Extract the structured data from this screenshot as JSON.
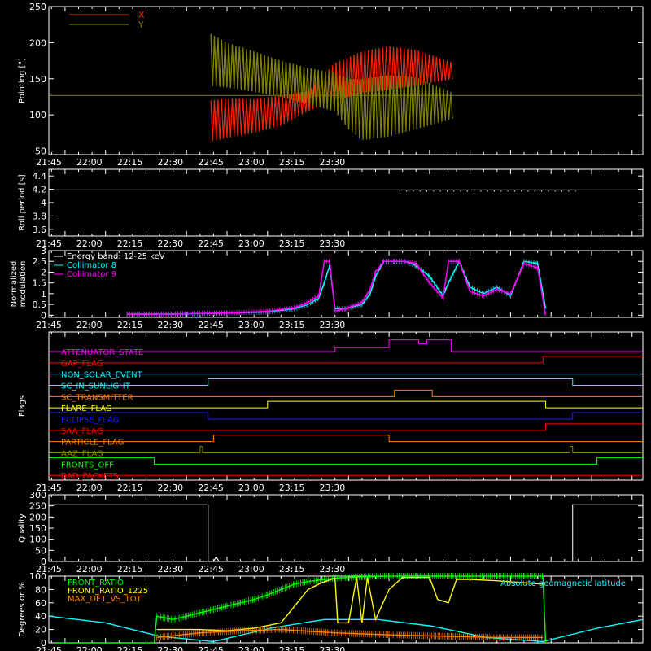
{
  "chart_data": [
    {
      "id": "pointing",
      "type": "line",
      "ylabel": "Pointing [\"]",
      "ylim": [
        45,
        250
      ],
      "yticks": [
        50,
        100,
        150,
        200,
        250
      ],
      "xlim": [
        1914,
        2134
      ],
      "xticks": [
        "21:45",
        "22:00",
        "22:15",
        "22:30",
        "22:45",
        "23:00",
        "23:15",
        "23:30"
      ],
      "legend": [
        {
          "name": "X",
          "color": "#ff2200"
        },
        {
          "name": "Y",
          "color": "#808000"
        }
      ],
      "baseline": 127,
      "series": [
        {
          "name": "X",
          "color": "#ff2200",
          "x": [
            1974,
            1980,
            1990,
            2000,
            2010,
            2020,
            2030,
            2040,
            2050,
            2064
          ],
          "ymin": [
            63,
            68,
            75,
            85,
            105,
            120,
            130,
            135,
            140,
            150
          ],
          "ymax": [
            120,
            123,
            122,
            127,
            133,
            172,
            188,
            195,
            190,
            172
          ]
        },
        {
          "name": "Y",
          "color": "#808000",
          "x": [
            1974,
            1980,
            1990,
            2000,
            2010,
            2020,
            2025,
            2030,
            2040,
            2050,
            2064
          ],
          "ymin": [
            140,
            138,
            132,
            125,
            115,
            105,
            80,
            65,
            70,
            80,
            95
          ],
          "ymax": [
            212,
            200,
            188,
            175,
            165,
            158,
            150,
            150,
            155,
            152,
            130
          ]
        }
      ]
    },
    {
      "id": "roll",
      "type": "line",
      "ylabel": "Roll period [s]",
      "ylim": [
        3.5,
        4.5
      ],
      "yticks": [
        3.6,
        3.8,
        4.0,
        4.2,
        4.4
      ],
      "xlim": [
        1914,
        2134
      ],
      "xticks": [
        "21:45",
        "22:00",
        "22:15",
        "22:30",
        "22:45",
        "23:00",
        "23:15",
        "23:30"
      ],
      "series": [
        {
          "name": "roll",
          "color": "#ffffff",
          "value": 4.19
        }
      ]
    },
    {
      "id": "modulation",
      "type": "line",
      "ylabel": "Normalized modulation",
      "ylim": [
        -0.1,
        3.0
      ],
      "yticks": [
        0.0,
        0.5,
        1.0,
        1.5,
        2.0,
        2.5,
        3.0
      ],
      "xlim": [
        1914,
        2134
      ],
      "xticks": [
        "21:45",
        "22:00",
        "22:15",
        "22:30",
        "22:45",
        "23:00",
        "23:15",
        "23:30"
      ],
      "legend": [
        {
          "name": "Energy band: 12-25 keV",
          "color": "#ffffff"
        },
        {
          "name": "Collimator 8",
          "color": "#00ffff"
        },
        {
          "name": "Collimator 9",
          "color": "#ff00ff"
        }
      ],
      "series": [
        {
          "name": "Collimator 8",
          "color": "#00ffff",
          "x": [
            1943,
            1960,
            1980,
            1995,
            2005,
            2010,
            2014,
            2016,
            2018,
            2020,
            2024,
            2030,
            2033,
            2035,
            2038,
            2042,
            2046,
            2050,
            2055,
            2060,
            2062,
            2066,
            2070,
            2075,
            2080,
            2085,
            2090,
            2095,
            2098
          ],
          "y": [
            0.05,
            0.05,
            0.1,
            0.15,
            0.3,
            0.5,
            0.8,
            1.5,
            2.3,
            0.3,
            0.3,
            0.5,
            1.0,
            1.8,
            2.5,
            2.5,
            2.5,
            2.3,
            1.8,
            0.9,
            1.5,
            2.5,
            1.3,
            1.0,
            1.3,
            0.9,
            2.5,
            2.4,
            0.3
          ]
        },
        {
          "name": "Collimator 9",
          "color": "#ff00ff",
          "x": [
            1943,
            1960,
            1980,
            1995,
            2005,
            2010,
            2014,
            2016,
            2018,
            2020,
            2024,
            2030,
            2033,
            2035,
            2038,
            2042,
            2046,
            2050,
            2055,
            2060,
            2062,
            2066,
            2070,
            2075,
            2080,
            2085,
            2090,
            2095,
            2098
          ],
          "y": [
            0.05,
            0.06,
            0.1,
            0.18,
            0.35,
            0.6,
            0.9,
            2.5,
            2.5,
            0.2,
            0.3,
            0.6,
            1.2,
            2.0,
            2.5,
            2.5,
            2.5,
            2.4,
            1.5,
            0.8,
            2.5,
            2.5,
            1.1,
            0.9,
            1.2,
            1.0,
            2.4,
            2.2,
            0.0
          ]
        }
      ]
    },
    {
      "id": "flags",
      "type": "line",
      "ylabel": "Flags",
      "xlim": [
        1914,
        2134
      ],
      "xticks": [
        "21:45",
        "22:00",
        "22:15",
        "22:30",
        "22:45",
        "23:00",
        "23:15",
        "23:30"
      ],
      "flags": [
        {
          "name": "ATTENUATOR_STATE",
          "color": "#ff00ff",
          "steps": [
            [
              1914,
              0
            ],
            [
              2020,
              1
            ],
            [
              2040,
              3
            ],
            [
              2051,
              2
            ],
            [
              2054,
              3
            ],
            [
              2063,
              0
            ]
          ]
        },
        {
          "name": "GAP_FLAG",
          "color": "#ff0000",
          "steps": [
            [
              1914,
              0
            ],
            [
              2097,
              1
            ]
          ]
        },
        {
          "name": "NON_SOLAR_EVENT",
          "color": "#00ffff",
          "steps": [
            [
              1914,
              0
            ]
          ]
        },
        {
          "name": "SC_IN_SUNLIGHT",
          "color": "#00ffff",
          "steps": [
            [
              1914,
              0
            ],
            [
              1973,
              1
            ],
            [
              2108,
              0
            ]
          ]
        },
        {
          "name": "SC_TRANSMITTER",
          "color": "#ff8000",
          "steps": [
            [
              1914,
              0
            ],
            [
              2042,
              1
            ],
            [
              2056,
              0
            ]
          ]
        },
        {
          "name": "FLARE_FLAG",
          "color": "#ffff00",
          "steps": [
            [
              1914,
              0
            ],
            [
              1995,
              1
            ],
            [
              2098,
              0
            ]
          ]
        },
        {
          "name": "ECLIPSE_FLAG",
          "color": "#2020ff",
          "steps": [
            [
              1914,
              1
            ],
            [
              1973,
              0
            ],
            [
              2108,
              1
            ]
          ]
        },
        {
          "name": "SAA_FLAG",
          "color": "#ff0000",
          "steps": [
            [
              1914,
              0
            ],
            [
              2098,
              1
            ]
          ]
        },
        {
          "name": "PARTICLE_FLAG",
          "color": "#ff8000",
          "steps": [
            [
              1914,
              0
            ],
            [
              1975,
              1
            ],
            [
              2040,
              0
            ]
          ]
        },
        {
          "name": "AAZ_FLAG",
          "color": "#808000",
          "steps": [
            [
              1914,
              0
            ],
            [
              1970,
              1
            ],
            [
              1971,
              0
            ],
            [
              2107,
              1
            ],
            [
              2108,
              0
            ]
          ]
        },
        {
          "name": "FRONTS_OFF",
          "color": "#00ff00",
          "steps": [
            [
              1914,
              1
            ],
            [
              1953,
              0
            ],
            [
              2117,
              1
            ]
          ]
        },
        {
          "name": "BAD_PACKETS",
          "color": "#ff0000",
          "steps": [
            [
              1914,
              0
            ]
          ]
        }
      ]
    },
    {
      "id": "quality",
      "type": "line",
      "ylabel": "Quality",
      "ylim": [
        0,
        300
      ],
      "yticks": [
        0,
        50,
        100,
        150,
        200,
        250,
        300
      ],
      "xlim": [
        1914,
        2134
      ],
      "xticks": [
        "21:45",
        "22:00",
        "22:15",
        "22:30",
        "22:45",
        "23:00",
        "23:15",
        "23:30"
      ],
      "series": [
        {
          "name": "quality",
          "color": "#ffffff",
          "steps": [
            [
              1914,
              255
            ],
            [
              1973,
              0
            ],
            [
              2108,
              255
            ]
          ]
        }
      ]
    },
    {
      "id": "geo",
      "type": "line",
      "ylabel": "Degrees or %",
      "ylim": [
        0,
        100
      ],
      "yticks": [
        0,
        20,
        40,
        60,
        80,
        100
      ],
      "xlim": [
        1914,
        2134
      ],
      "xticks": [
        "21:45",
        "22:00",
        "22:15",
        "22:30",
        "22:45",
        "23:00",
        "23:15",
        "23:30"
      ],
      "legend": [
        {
          "name": "FRONT_RATIO",
          "color": "#00ff00"
        },
        {
          "name": "FRONT_RATIO_1225",
          "color": "#ffff00"
        },
        {
          "name": "MAX_DET_VS_TOT",
          "color": "#ff8000"
        }
      ],
      "annotation": {
        "text": "Absolute geomagnetic latitude",
        "color": "#00ffff"
      },
      "series": [
        {
          "name": "Absolute geomagnetic latitude",
          "color": "#00ffff",
          "x": [
            1914,
            1935,
            1955,
            1975,
            1996,
            2016,
            2036,
            2056,
            2076,
            2097,
            2117,
            2134
          ],
          "y": [
            40,
            30,
            10,
            2,
            22,
            35,
            35,
            25,
            8,
            2,
            22,
            35
          ]
        },
        {
          "name": "FRONT_RATIO",
          "color": "#00ff00",
          "x": [
            1916,
            1953,
            1954,
            1960,
            1965,
            1970,
            1975,
            1980,
            1985,
            1990,
            1995,
            2000,
            2005,
            2010,
            2020,
            2030,
            2040,
            2050,
            2060,
            2070,
            2080,
            2090,
            2097,
            2098
          ],
          "y": [
            0,
            0,
            40,
            35,
            40,
            45,
            50,
            55,
            60,
            65,
            72,
            80,
            88,
            92,
            97,
            99,
            100,
            100,
            100,
            100,
            100,
            100,
            100,
            0
          ]
        },
        {
          "name": "FRONT_RATIO_1225",
          "color": "#ffff00",
          "x": [
            1954,
            1970,
            1980,
            1990,
            2000,
            2005,
            2010,
            2015,
            2020,
            2021,
            2025,
            2028,
            2030,
            2032,
            2035,
            2040,
            2045,
            2055,
            2058,
            2062,
            2065,
            2070,
            2080,
            2090,
            2097
          ],
          "y": [
            20,
            20,
            18,
            22,
            30,
            55,
            80,
            90,
            97,
            30,
            30,
            98,
            30,
            98,
            35,
            80,
            98,
            98,
            65,
            60,
            95,
            95,
            93,
            90,
            88
          ]
        },
        {
          "name": "MAX_DET_VS_TOT",
          "color": "#ff8000",
          "x": [
            1954,
            1970,
            1985,
            2000,
            2020,
            2040,
            2060,
            2080,
            2097
          ],
          "y": [
            8,
            15,
            18,
            20,
            15,
            12,
            10,
            8,
            8
          ]
        }
      ]
    }
  ]
}
